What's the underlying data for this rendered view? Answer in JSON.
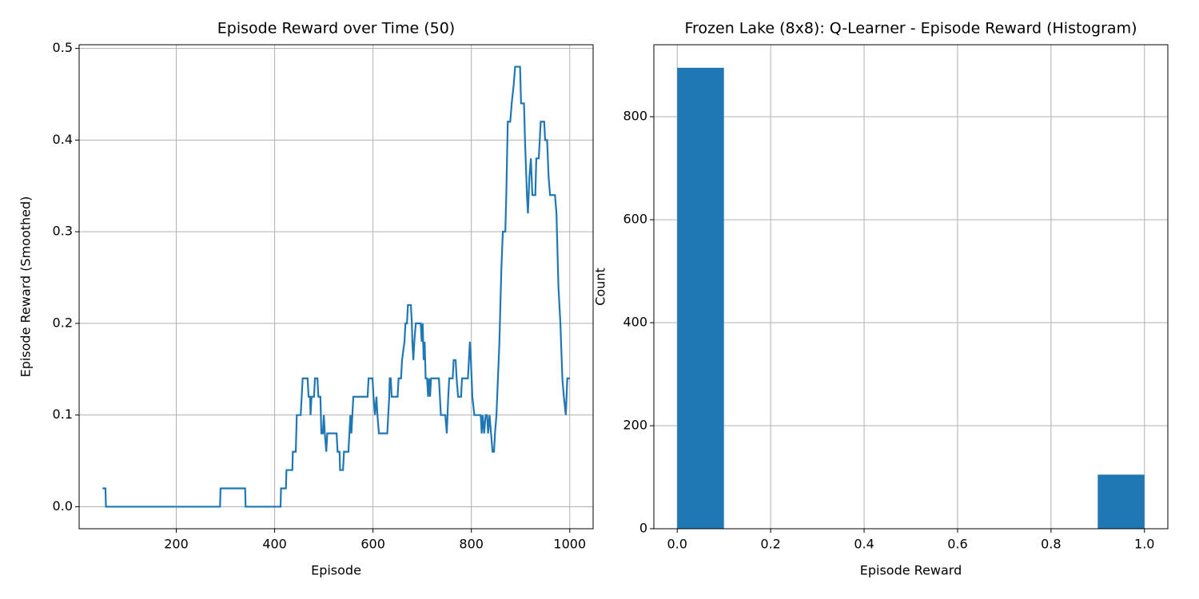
{
  "chart_data": [
    {
      "type": "line",
      "title": "Episode Reward over Time (50)",
      "xlabel": "Episode",
      "ylabel": "Episode Reward (Smoothed)",
      "x": [
        50,
        56,
        57,
        289,
        290,
        340,
        341,
        412,
        413,
        423,
        424,
        436,
        437,
        443,
        445,
        453,
        455,
        457,
        467,
        469,
        472,
        473,
        475,
        480,
        482,
        487,
        489,
        493,
        495,
        498,
        500,
        502,
        505,
        507,
        526,
        528,
        532,
        533,
        539,
        541,
        550,
        552,
        554,
        556,
        558,
        560,
        589,
        591,
        599,
        601,
        604,
        607,
        609,
        612,
        629,
        631,
        633,
        634,
        636,
        638,
        650,
        652,
        657,
        659,
        664,
        666,
        669,
        671,
        677,
        679,
        680,
        682,
        684,
        687,
        697,
        699,
        701,
        703,
        705,
        707,
        710,
        712,
        714,
        716,
        718,
        734,
        736,
        738,
        747,
        750,
        753,
        755,
        762,
        764,
        768,
        770,
        773,
        779,
        781,
        793,
        795,
        797,
        799,
        802,
        806,
        819,
        821,
        823,
        826,
        829,
        832,
        834,
        837,
        840,
        843,
        846,
        848,
        851,
        854,
        857,
        861,
        864,
        869,
        871,
        874,
        879,
        882,
        886,
        889,
        899,
        901,
        907,
        909,
        913,
        915,
        918,
        921,
        924,
        930,
        932,
        937,
        939,
        941,
        948,
        950,
        954,
        957,
        960,
        970,
        973,
        977,
        981,
        985,
        988,
        992,
        995,
        1000
      ],
      "values": [
        0.02,
        0.02,
        0,
        0,
        0.02,
        0.02,
        0,
        0,
        0.02,
        0.02,
        0.04,
        0.04,
        0.06,
        0.06,
        0.1,
        0.1,
        0.12,
        0.14,
        0.14,
        0.12,
        0.12,
        0.1,
        0.12,
        0.12,
        0.14,
        0.14,
        0.12,
        0.12,
        0.08,
        0.08,
        0.1,
        0.08,
        0.06,
        0.08,
        0.08,
        0.06,
        0.06,
        0.04,
        0.04,
        0.06,
        0.06,
        0.08,
        0.1,
        0.08,
        0.1,
        0.12,
        0.12,
        0.14,
        0.14,
        0.12,
        0.1,
        0.12,
        0.1,
        0.08,
        0.08,
        0.1,
        0.12,
        0.14,
        0.14,
        0.12,
        0.12,
        0.14,
        0.14,
        0.16,
        0.18,
        0.2,
        0.2,
        0.22,
        0.22,
        0.2,
        0.18,
        0.16,
        0.18,
        0.2,
        0.2,
        0.18,
        0.2,
        0.16,
        0.18,
        0.14,
        0.14,
        0.12,
        0.14,
        0.12,
        0.14,
        0.14,
        0.12,
        0.1,
        0.1,
        0.08,
        0.12,
        0.14,
        0.14,
        0.16,
        0.16,
        0.14,
        0.12,
        0.12,
        0.14,
        0.14,
        0.16,
        0.18,
        0.16,
        0.12,
        0.1,
        0.1,
        0.08,
        0.1,
        0.08,
        0.1,
        0.1,
        0.08,
        0.1,
        0.08,
        0.06,
        0.06,
        0.08,
        0.1,
        0.14,
        0.18,
        0.26,
        0.3,
        0.3,
        0.34,
        0.42,
        0.42,
        0.44,
        0.46,
        0.48,
        0.48,
        0.44,
        0.44,
        0.4,
        0.34,
        0.32,
        0.36,
        0.38,
        0.34,
        0.34,
        0.38,
        0.38,
        0.4,
        0.42,
        0.42,
        0.4,
        0.4,
        0.36,
        0.34,
        0.34,
        0.32,
        0.24,
        0.2,
        0.14,
        0.12,
        0.1,
        0.14,
        0.14
      ],
      "color": "#1f77b4",
      "xlim": [
        2.5,
        1047.5
      ],
      "ylim": [
        -0.024,
        0.504
      ],
      "xticks": [
        200,
        400,
        600,
        800,
        1000
      ],
      "yticks": [
        {
          "value": 0,
          "label": "0.0"
        },
        0.1,
        0.2,
        0.3,
        0.4,
        0.5
      ],
      "grid": true
    },
    {
      "type": "histogram",
      "title": "Frozen Lake (8x8): Q-Learner - Episode Reward (Histogram)",
      "xlabel": "Episode Reward",
      "ylabel": "Count",
      "bins": [
        0,
        0.1,
        0.2,
        0.3,
        0.4,
        0.5,
        0.6,
        0.7,
        0.8,
        0.9,
        1.0
      ],
      "values": [
        895,
        0,
        0,
        0,
        0,
        0,
        0,
        0,
        0,
        105
      ],
      "color": "#1f77b4",
      "xlim": [
        -0.05,
        1.05
      ],
      "ylim": [
        0,
        939.75
      ],
      "xticks": [
        {
          "value": 0,
          "label": "0.0"
        },
        0.2,
        0.4,
        0.6,
        0.8,
        {
          "value": 1,
          "label": "1.0"
        }
      ],
      "yticks": [
        0,
        200,
        400,
        600,
        800
      ],
      "grid": true
    }
  ]
}
